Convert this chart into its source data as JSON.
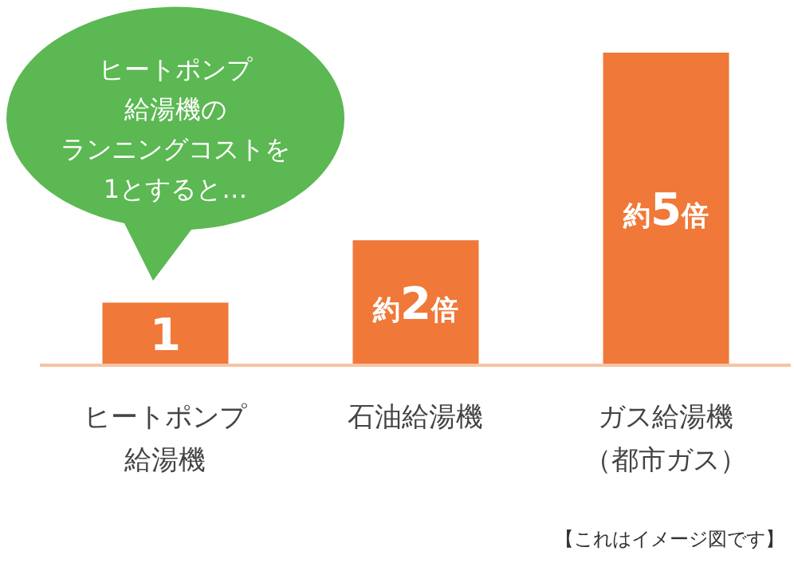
{
  "chart_data": {
    "type": "bar",
    "categories": [
      "ヒートポンプ給湯機",
      "石油給湯機",
      "ガス給湯機（都市ガス）"
    ],
    "values": [
      1,
      2,
      5
    ],
    "color": "#f07838",
    "value_labels": [
      "1",
      "約2倍",
      "約5倍"
    ],
    "annotations": [
      "ヒートポンプ給湯機のランニングコストを1とすると…",
      "【これはイメージ図です】"
    ]
  }
}
